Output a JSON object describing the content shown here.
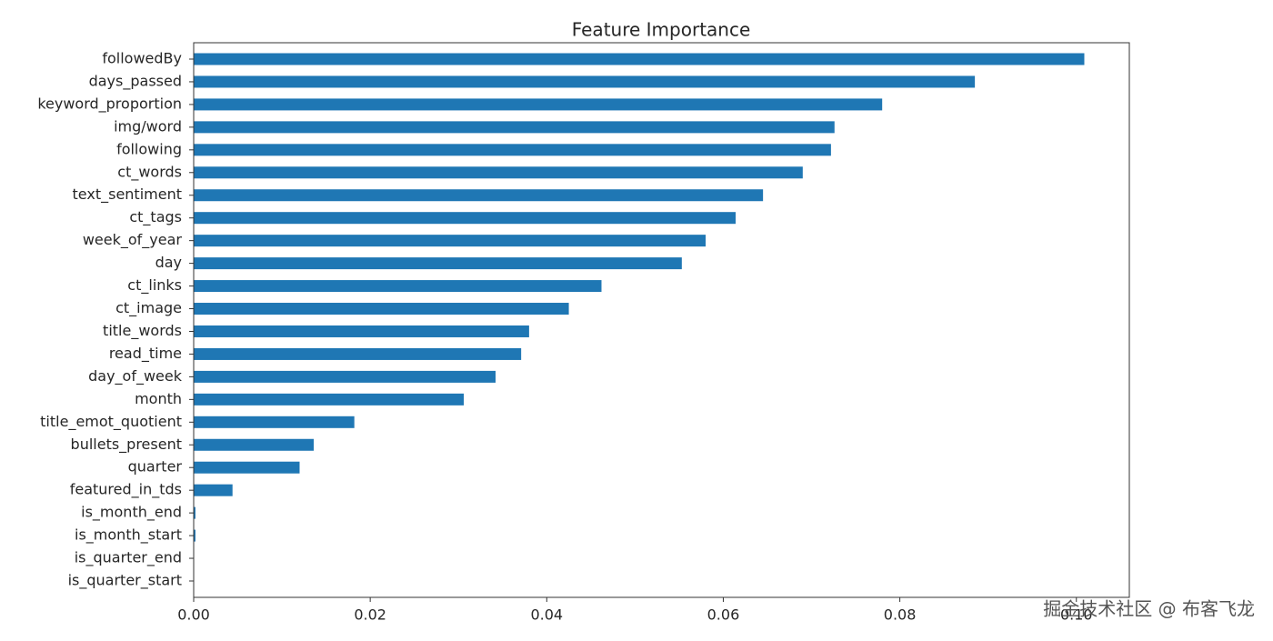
{
  "chart_data": {
    "type": "barh",
    "title": "Feature Importance",
    "categories": [
      "followedBy",
      "days_passed",
      "keyword_proportion",
      "img/word",
      "following",
      "ct_words",
      "text_sentiment",
      "ct_tags",
      "week_of_year",
      "day",
      "ct_links",
      "ct_image",
      "title_words",
      "read_time",
      "day_of_week",
      "month",
      "title_emot_quotient",
      "bullets_present",
      "quarter",
      "featured_in_tds",
      "is_month_end",
      "is_month_start",
      "is_quarter_end",
      "is_quarter_start"
    ],
    "values": [
      0.1009,
      0.0885,
      0.078,
      0.0726,
      0.0722,
      0.069,
      0.0645,
      0.0614,
      0.058,
      0.0553,
      0.0462,
      0.0425,
      0.038,
      0.0371,
      0.0342,
      0.0306,
      0.0182,
      0.0136,
      0.012,
      0.0044,
      0.0002,
      0.0002,
      0,
      0
    ],
    "color": "#1f77b4",
    "xlim": [
      0,
      0.106
    ],
    "xticks": [
      {
        "value": 0,
        "label": "0.00"
      },
      {
        "value": 0.02,
        "label": "0.02"
      },
      {
        "value": 0.04,
        "label": "0.04"
      },
      {
        "value": 0.06,
        "label": "0.06"
      },
      {
        "value": 0.08,
        "label": "0.08"
      },
      {
        "value": 0.1,
        "label": "0.10"
      }
    ],
    "grid": false
  },
  "watermark": "掘金技术社区 @ 布客飞龙"
}
